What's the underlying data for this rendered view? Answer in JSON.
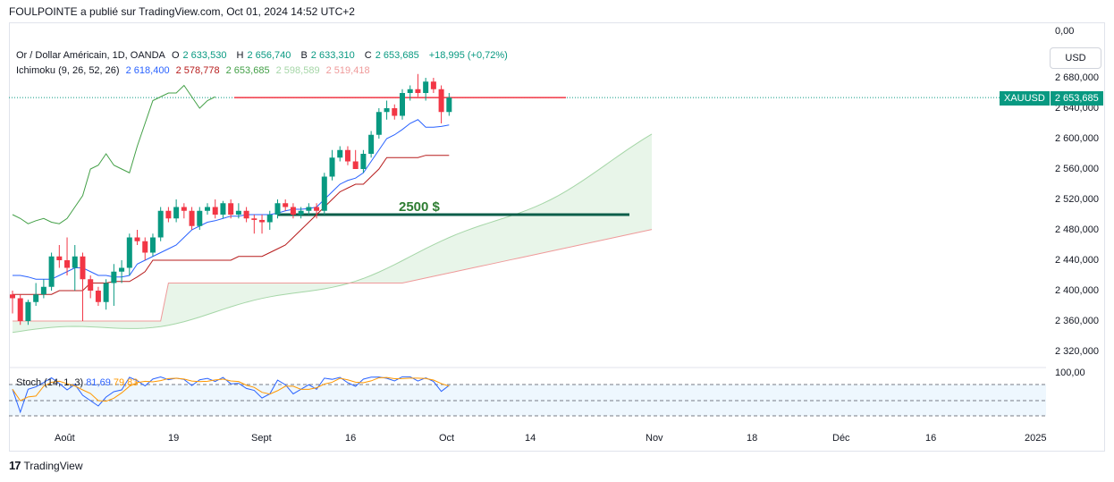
{
  "header": {
    "publish_text": "FOULPOINTE a publié sur TradingView.com, Oct 01, 2024 14:52 UTC+2"
  },
  "legend": {
    "symbol": "Or / Dollar Américain, 1D, OANDA",
    "o_label": "O",
    "o_value": "2 633,530",
    "h_label": "H",
    "h_value": "2 656,740",
    "b_label": "B",
    "b_value": "2 633,310",
    "c_label": "C",
    "c_value": "2 653,685",
    "change": "+18,995 (+0,72%)",
    "ichimoku_label": "Ichimoku (9, 26, 52, 26)",
    "ichimoku_values": [
      "2 618,400",
      "2 578,778",
      "2 653,685",
      "2 598,589",
      "2 519,418"
    ]
  },
  "stoch": {
    "label": "Stoch (14, 1, 3)",
    "k": "81,69",
    "d": "79,83",
    "axis_top": "100,00"
  },
  "price_axis": {
    "top_label": "0,00",
    "currency_button": "USD",
    "labels": [
      "2 680,000",
      "2 640,000",
      "2 600,000",
      "2 560,000",
      "2 520,000",
      "2 480,000",
      "2 440,000",
      "2 400,000",
      "2 360,000",
      "2 320,000"
    ],
    "current_symbol": "XAUUSD",
    "current_price": "2 653,685"
  },
  "time_axis": {
    "labels": [
      "Août",
      "19",
      "Sept",
      "16",
      "Oct",
      "14",
      "Nov",
      "18",
      "Déc",
      "16",
      "2025"
    ]
  },
  "annotation": {
    "level_label": "2500 $",
    "level": 2500,
    "resistance_level": 2654
  },
  "brand": {
    "name": "TradingView"
  },
  "colors": {
    "up": "#089981",
    "down": "#f23645",
    "tenkan": "#2962ff",
    "kijun": "#b71c1c",
    "chikou": "#43a047",
    "span_a": "#a5d6a7",
    "span_b": "#ef9a9a",
    "level_line": "#0b5e4a",
    "stoch_k": "#2962ff",
    "stoch_d": "#ff9800"
  },
  "chart_data": {
    "type": "candlestick",
    "y_range": [
      2300,
      2700
    ],
    "candles": [
      [
        2395,
        2400,
        2370,
        2390
      ],
      [
        2390,
        2395,
        2355,
        2360
      ],
      [
        2360,
        2388,
        2355,
        2385
      ],
      [
        2385,
        2410,
        2380,
        2395
      ],
      [
        2395,
        2415,
        2390,
        2405
      ],
      [
        2405,
        2450,
        2400,
        2445
      ],
      [
        2445,
        2460,
        2430,
        2440
      ],
      [
        2440,
        2470,
        2420,
        2430
      ],
      [
        2430,
        2460,
        2400,
        2445
      ],
      [
        2445,
        2450,
        2360,
        2415
      ],
      [
        2415,
        2420,
        2390,
        2400
      ],
      [
        2400,
        2405,
        2380,
        2385
      ],
      [
        2385,
        2415,
        2375,
        2410
      ],
      [
        2410,
        2435,
        2380,
        2425
      ],
      [
        2425,
        2440,
        2410,
        2430
      ],
      [
        2430,
        2475,
        2420,
        2470
      ],
      [
        2470,
        2480,
        2460,
        2465
      ],
      [
        2465,
        2470,
        2440,
        2450
      ],
      [
        2450,
        2475,
        2445,
        2470
      ],
      [
        2470,
        2510,
        2465,
        2505
      ],
      [
        2505,
        2510,
        2490,
        2495
      ],
      [
        2495,
        2520,
        2490,
        2510
      ],
      [
        2510,
        2515,
        2495,
        2505
      ],
      [
        2505,
        2510,
        2480,
        2485
      ],
      [
        2485,
        2510,
        2480,
        2505
      ],
      [
        2505,
        2515,
        2500,
        2510
      ],
      [
        2510,
        2520,
        2495,
        2500
      ],
      [
        2500,
        2518,
        2495,
        2515
      ],
      [
        2515,
        2520,
        2495,
        2500
      ],
      [
        2500,
        2515,
        2495,
        2505
      ],
      [
        2505,
        2510,
        2490,
        2495
      ],
      [
        2495,
        2500,
        2475,
        2493
      ],
      [
        2493,
        2500,
        2475,
        2490
      ],
      [
        2490,
        2505,
        2480,
        2500
      ],
      [
        2500,
        2520,
        2495,
        2515
      ],
      [
        2515,
        2520,
        2505,
        2510
      ],
      [
        2510,
        2515,
        2495,
        2500
      ],
      [
        2500,
        2510,
        2495,
        2505
      ],
      [
        2505,
        2515,
        2500,
        2510
      ],
      [
        2510,
        2515,
        2495,
        2505
      ],
      [
        2505,
        2555,
        2500,
        2550
      ],
      [
        2550,
        2585,
        2545,
        2575
      ],
      [
        2575,
        2590,
        2570,
        2585
      ],
      [
        2585,
        2590,
        2565,
        2570
      ],
      [
        2570,
        2585,
        2560,
        2560
      ],
      [
        2560,
        2585,
        2555,
        2580
      ],
      [
        2580,
        2610,
        2575,
        2605
      ],
      [
        2605,
        2640,
        2600,
        2635
      ],
      [
        2635,
        2650,
        2625,
        2640
      ],
      [
        2640,
        2645,
        2625,
        2630
      ],
      [
        2630,
        2665,
        2625,
        2660
      ],
      [
        2660,
        2670,
        2650,
        2665
      ],
      [
        2665,
        2685,
        2655,
        2660
      ],
      [
        2660,
        2680,
        2650,
        2675
      ],
      [
        2675,
        2680,
        2660,
        2665
      ],
      [
        2665,
        2670,
        2620,
        2635
      ],
      [
        2635,
        2660,
        2630,
        2654
      ]
    ],
    "tenkan": [
      2420,
      2420,
      2418,
      2415,
      2415,
      2415,
      2420,
      2425,
      2430,
      2430,
      2425,
      2420,
      2420,
      2418,
      2418,
      2420,
      2435,
      2440,
      2445,
      2450,
      2455,
      2460,
      2470,
      2480,
      2485,
      2490,
      2492,
      2495,
      2498,
      2498,
      2500,
      2500,
      2500,
      2500,
      2502,
      2505,
      2507,
      2507,
      2508,
      2510,
      2520,
      2530,
      2540,
      2545,
      2548,
      2555,
      2570,
      2585,
      2600,
      2605,
      2612,
      2620,
      2625,
      2615,
      2615,
      2616,
      2618
    ],
    "kijun": [
      2395,
      2395,
      2395,
      2395,
      2395,
      2395,
      2400,
      2400,
      2400,
      2400,
      2410,
      2410,
      2410,
      2412,
      2412,
      2412,
      2418,
      2425,
      2440,
      2440,
      2440,
      2440,
      2440,
      2440,
      2440,
      2440,
      2440,
      2440,
      2440,
      2445,
      2445,
      2445,
      2445,
      2450,
      2455,
      2460,
      2470,
      2480,
      2490,
      2500,
      2510,
      2520,
      2530,
      2535,
      2540,
      2540,
      2550,
      2560,
      2575,
      2575,
      2575,
      2575,
      2575,
      2578,
      2578,
      2578,
      2578
    ],
    "chikou": [
      2500,
      2495,
      2488,
      2492,
      2495,
      2490,
      2488,
      2495,
      2510,
      2525,
      2560,
      2565,
      2580,
      2565,
      2560,
      2555,
      2590,
      2620,
      2650,
      2655,
      2660,
      2660,
      2670,
      2655,
      2640,
      2650,
      2655
    ]
  }
}
